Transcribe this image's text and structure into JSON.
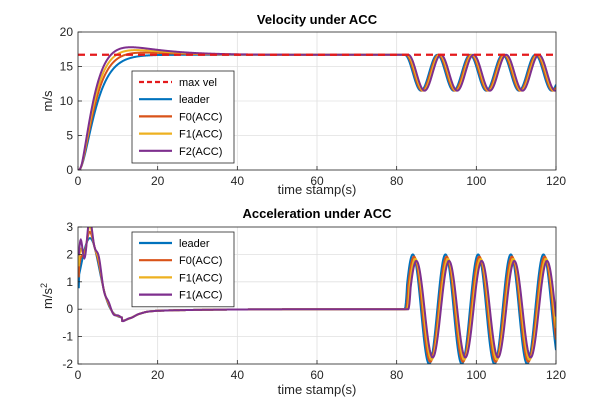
{
  "chart_data": [
    {
      "type": "line",
      "title": "Velocity under ACC",
      "xlabel": "time stamp(s)",
      "ylabel": "m/s",
      "xlim": [
        0,
        120
      ],
      "ylim": [
        0,
        20
      ],
      "xticks": [
        0,
        20,
        40,
        60,
        80,
        100,
        120
      ],
      "yticks": [
        0,
        5,
        10,
        15,
        20
      ],
      "grid": true,
      "legend_position": "center-left",
      "reference_line": {
        "name": "max vel",
        "y": 16.7,
        "color": "#e41a1c",
        "style": "dashed"
      },
      "series": [
        {
          "name": "leader",
          "color": "#0072BD"
        },
        {
          "name": "F0(ACC)",
          "color": "#D95319"
        },
        {
          "name": "F1(ACC)",
          "color": "#EDB120"
        },
        {
          "name": "F2(ACC)",
          "color": "#7E2F8E"
        }
      ]
    },
    {
      "type": "line",
      "title": "Acceleration under ACC",
      "xlabel": "time stamp(s)",
      "ylabel_base": "m/s",
      "ylabel_sup": "2",
      "xlim": [
        0,
        120
      ],
      "ylim": [
        -2,
        3
      ],
      "xticks": [
        0,
        20,
        40,
        60,
        80,
        100,
        120
      ],
      "yticks": [
        -2,
        -1,
        0,
        1,
        2,
        3
      ],
      "grid": true,
      "legend_position": "top-left",
      "series": [
        {
          "name": "leader",
          "color": "#0072BD"
        },
        {
          "name": "F0(ACC)",
          "color": "#D95319"
        },
        {
          "name": "F1(ACC)",
          "color": "#EDB120"
        },
        {
          "name": "F1(ACC)",
          "color": "#7E2F8E"
        }
      ]
    }
  ]
}
